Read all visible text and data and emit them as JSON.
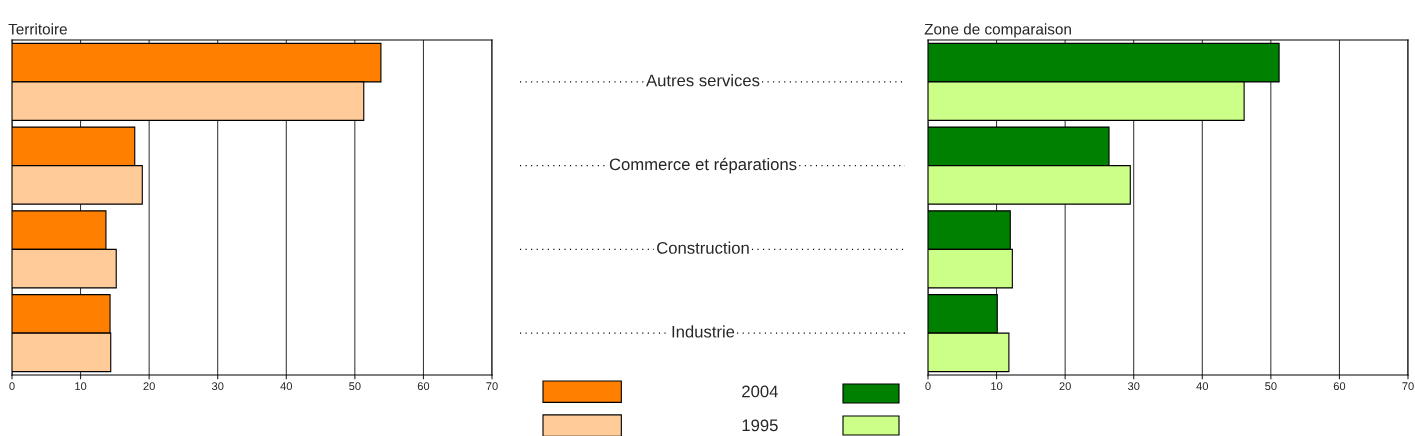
{
  "chart_data": [
    {
      "type": "bar",
      "orientation": "horizontal",
      "title": "Territoire",
      "categories": [
        "Autres services",
        "Commerce et réparations",
        "Construction",
        "Industrie"
      ],
      "series": [
        {
          "name": "2004",
          "color": "#ff8000",
          "values": [
            53.8,
            17.9,
            13.7,
            14.3
          ]
        },
        {
          "name": "1995",
          "color": "#ffcc99",
          "values": [
            51.3,
            19.0,
            15.2,
            14.4
          ]
        }
      ],
      "xlim": [
        0,
        70
      ],
      "xticks": [
        0,
        10,
        20,
        30,
        40,
        50,
        60,
        70
      ],
      "grid": "x",
      "legend": "bottom right",
      "tick_labels": "x"
    },
    {
      "type": "bar",
      "orientation": "horizontal",
      "title": "Zone de comparaison",
      "categories": [
        null,
        null,
        null,
        null
      ],
      "series": [
        {
          "color": "#008000",
          "values": [
            51.2,
            26.4,
            12.0,
            10.1
          ]
        },
        {
          "color": "#ccff88",
          "values": [
            46.1,
            29.5,
            12.3,
            11.8
          ]
        }
      ],
      "xlim": [
        0,
        70
      ],
      "xticks": [
        0,
        10,
        20,
        30,
        40,
        50,
        60,
        70
      ],
      "grid": "x",
      "tick_labels": "x"
    }
  ]
}
